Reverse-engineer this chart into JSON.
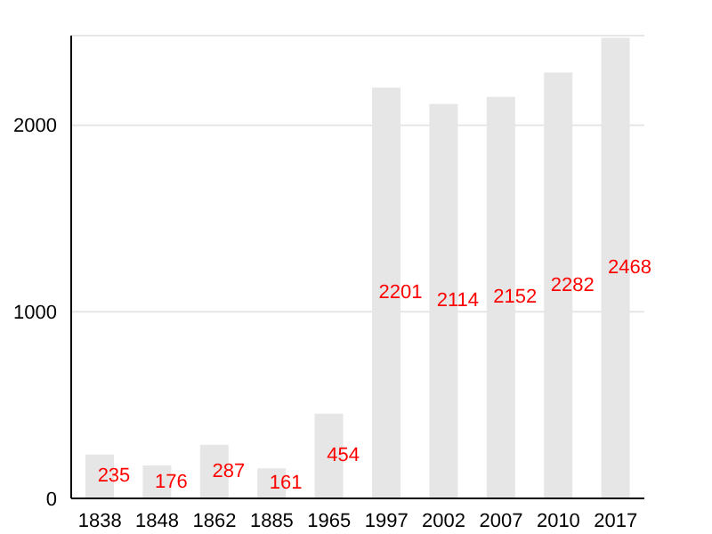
{
  "chart_data": {
    "type": "bar",
    "categories": [
      "1838",
      "1848",
      "1862",
      "1885",
      "1965",
      "1997",
      "2002",
      "2007",
      "2010",
      "2017"
    ],
    "values": [
      235,
      176,
      287,
      161,
      454,
      2201,
      2114,
      2152,
      2282,
      2468
    ],
    "color": "#e6e6e6",
    "ylim": [
      0,
      2480
    ],
    "yticks": [
      0,
      1000,
      2000
    ],
    "grid": "y",
    "data_labels": true
  }
}
